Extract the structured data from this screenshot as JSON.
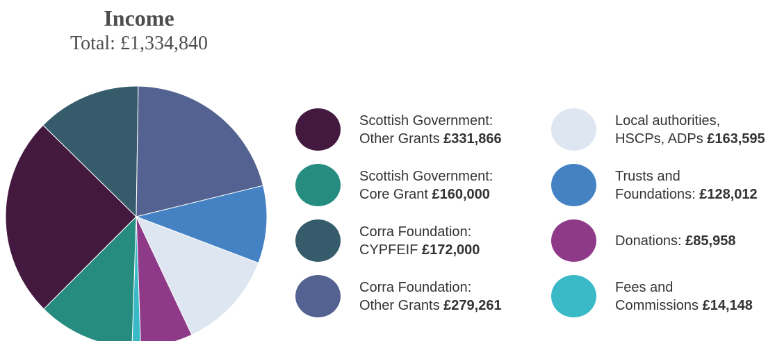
{
  "chart_data": {
    "type": "pie",
    "title": "Income",
    "subtitle": "Total: £1,334,840",
    "total": 1334840,
    "slices": [
      {
        "name": "Scottish Government: Other Grants",
        "value": 331866,
        "color": "#44193f",
        "label_line1": "Scottish Government:",
        "label_line2_prefix": "Other Grants",
        "amount": "£331,866"
      },
      {
        "name": "Corra Foundation: CYPFEIF",
        "value": 172000,
        "color": "#365c6c",
        "label_line1": "Corra Foundation:",
        "label_line2_prefix": "CYPFEIF",
        "amount": "£172,000"
      },
      {
        "name": "Corra Foundation: Other Grants",
        "value": 279261,
        "color": "#536290",
        "label_line1": "Corra Foundation:",
        "label_line2_prefix": "Other Grants",
        "amount": "£279,261"
      },
      {
        "name": "Trusts and Foundations",
        "value": 128012,
        "color": "#4582c4",
        "label_line1": "Trusts and",
        "label_line2_prefix": "Foundations:",
        "amount": "£128,012"
      },
      {
        "name": "Local authorities, HSCPs, ADPs",
        "value": 163595,
        "color": "#dde6f1",
        "label_line1": "Local authorities,",
        "label_line2_prefix": "HSCPs, ADPs",
        "amount": "£163,595"
      },
      {
        "name": "Donations",
        "value": 85958,
        "color": "#8f3a89",
        "label_line1": "Donations:",
        "label_line2_prefix": "",
        "amount": "£85,958"
      },
      {
        "name": "Fees and Commissions",
        "value": 14148,
        "color": "#3abac7",
        "label_line1": "Fees and",
        "label_line2_prefix": "Commissions",
        "amount": "£14,148"
      },
      {
        "name": "Scottish Government: Core Grant",
        "value": 160000,
        "color": "#268c80",
        "label_line1": "Scottish Government:",
        "label_line2_prefix": "Core Grant",
        "amount": "£160,000"
      }
    ],
    "legend_order": [
      0,
      7,
      1,
      2,
      4,
      3,
      5,
      6
    ],
    "legend_placement": "right"
  }
}
